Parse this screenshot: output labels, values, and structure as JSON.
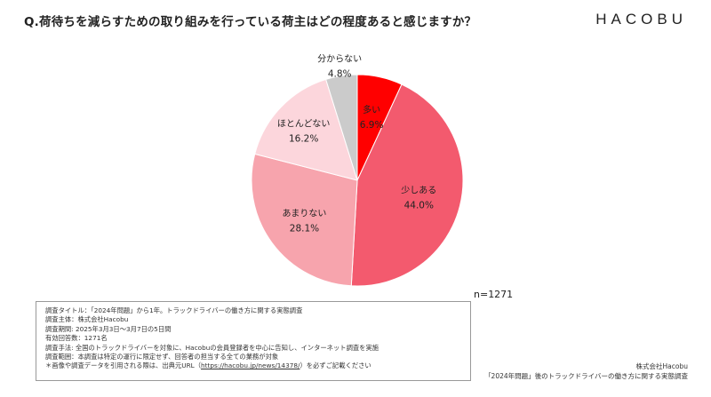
{
  "header": {
    "question": "Q.荷待ちを減らすための取り組みを行っている荷主はどの程度あると感じますか？",
    "logo": "HACOBU"
  },
  "chart_data": {
    "type": "pie",
    "slices": [
      {
        "label": "多い",
        "value": 6.9,
        "pct_label": "6.9%",
        "color": "#ff0000"
      },
      {
        "label": "少しある",
        "value": 44.0,
        "pct_label": "44.0%",
        "color": "#f35a6e"
      },
      {
        "label": "あまりない",
        "value": 28.1,
        "pct_label": "28.1%",
        "color": "#f7a4ad"
      },
      {
        "label": "ほとんどない",
        "value": 16.2,
        "pct_label": "16.2%",
        "color": "#fcd6dc"
      },
      {
        "label": "分からない",
        "value": 4.8,
        "pct_label": "4.8%",
        "color": "#cbcbcb"
      }
    ],
    "n_label": "n=1271"
  },
  "method": {
    "lines": [
      "調査タイトル：「2024年問題」から1年。トラックドライバーの働き方に関する実態調査",
      "調査主体：株式会社Hacobu",
      "調査期間: 2025年3月3日～3月7日の5日間",
      "有効回答数：1271名",
      "調査手法: 全国のトラックドライバーを対象に、Hacobuの会員登録者を中心に告知し、インターネット調査を実施",
      "調査範囲：本調査は特定の運行に限定せず、回答者の担当する全ての業務が対象"
    ],
    "citation_prefix": "＊画像や調査データを引用される際は、出典元URL（",
    "citation_url": "https://hacobu.jp/news/14378/",
    "citation_suffix": "）を必ずご記載ください"
  },
  "footer": {
    "company": "株式会社Hacobu",
    "survey_name": "「2024年問題」後のトラックドライバーの働き方に関する実態調査"
  }
}
